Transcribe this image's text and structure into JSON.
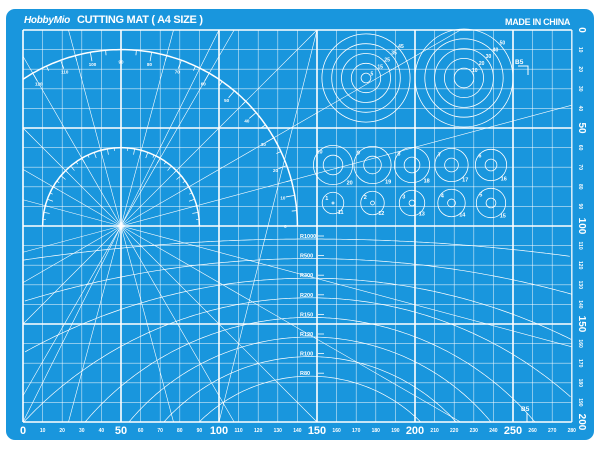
{
  "header": {
    "brand": "HobbyMio",
    "title": "CUTTING MAT ( A4 SIZE )",
    "origin": "MADE IN CHINA"
  },
  "colors": {
    "mat": "#1996dd",
    "lines": "#ffffff"
  },
  "grid": {
    "width_mm": 280,
    "height_mm": 200,
    "minor_mm": 10,
    "major_mm": 50
  },
  "bottom_ruler": [
    "0",
    "10",
    "20",
    "30",
    "40",
    "50",
    "60",
    "70",
    "80",
    "90",
    "100",
    "110",
    "120",
    "130",
    "140",
    "150",
    "160",
    "170",
    "180",
    "190",
    "200",
    "210",
    "220",
    "230",
    "240",
    "250",
    "260",
    "270",
    "280"
  ],
  "right_ruler": [
    "0",
    "10",
    "20",
    "30",
    "40",
    "50",
    "60",
    "70",
    "80",
    "90",
    "100",
    "110",
    "120",
    "130",
    "140",
    "150",
    "160",
    "170",
    "180",
    "190",
    "200"
  ],
  "large_protractor": {
    "labels": [
      "120",
      "110",
      "100",
      "90",
      "80",
      "70",
      "60",
      "50",
      "40",
      "30",
      "20",
      "10",
      "0"
    ]
  },
  "radius_guides": [
    "R1000",
    "R500",
    "R300",
    "R200",
    "R150",
    "R120",
    "R100",
    "R80"
  ],
  "radius_values": [
    1000,
    500,
    300,
    200,
    150,
    120,
    100,
    80
  ],
  "circle_set_a": [
    "5",
    "15",
    "25",
    "35",
    "45"
  ],
  "circle_set_b": [
    "10",
    "20",
    "30",
    "40",
    "50"
  ],
  "small_circles_row1": [
    {
      "inner": "10",
      "outer": "20"
    },
    {
      "inner": "9",
      "outer": "19"
    },
    {
      "inner": "8",
      "outer": "18"
    },
    {
      "inner": "7",
      "outer": "17"
    },
    {
      "inner": "6",
      "outer": "16"
    }
  ],
  "small_circles_row2": [
    {
      "inner": "1",
      "outer": "11"
    },
    {
      "inner": "2",
      "outer": "12"
    },
    {
      "inner": "3",
      "outer": "13"
    },
    {
      "inner": "4",
      "outer": "14"
    },
    {
      "inner": "5",
      "outer": "15"
    }
  ],
  "paper_marks": [
    "B5",
    "B5"
  ]
}
